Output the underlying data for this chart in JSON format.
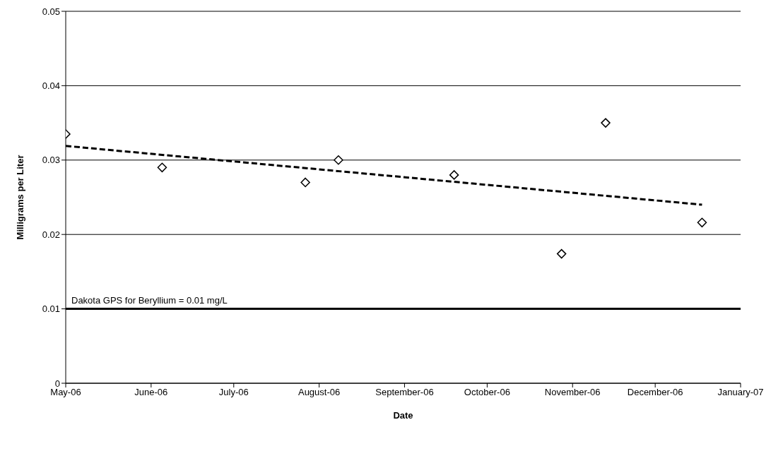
{
  "chart_data": {
    "type": "scatter",
    "xlabel": "Date",
    "ylabel": "Milligrams per Liter",
    "xlim": [
      "2006-05-01",
      "2007-01-01"
    ],
    "xticks": [
      {
        "value": "2006-05-01",
        "label": "May-06"
      },
      {
        "value": "2006-06-01",
        "label": "June-06"
      },
      {
        "value": "2006-07-01",
        "label": "July-06"
      },
      {
        "value": "2006-08-01",
        "label": "August-06"
      },
      {
        "value": "2006-09-01",
        "label": "September-06"
      },
      {
        "value": "2006-10-01",
        "label": "October-06"
      },
      {
        "value": "2006-11-01",
        "label": "November-06"
      },
      {
        "value": "2006-12-01",
        "label": "December-06"
      },
      {
        "value": "2007-01-01",
        "label": "January-07"
      }
    ],
    "ylim": [
      0,
      0.05
    ],
    "yticks": [
      0,
      0.01,
      0.02,
      0.03,
      0.04,
      0.05
    ],
    "grid": "y",
    "marker": "diamond",
    "series": [
      {
        "type": "scatter",
        "color": "#000000",
        "x": [
          "2006-05-01",
          "2006-06-05",
          "2006-07-27",
          "2006-08-08",
          "2006-09-19",
          "2006-10-28",
          "2006-11-13",
          "2006-12-18"
        ],
        "values": [
          0.0335,
          0.029,
          0.027,
          0.03,
          0.028,
          0.0174,
          0.035,
          0.0216
        ]
      },
      {
        "type": "line",
        "color": "#000000",
        "line_style": "dashed",
        "marker": "none",
        "x": [
          "2006-05-01",
          "2006-12-18"
        ],
        "values": [
          0.0319,
          0.024
        ]
      }
    ],
    "ref_lines": [
      {
        "axis": "y",
        "value": 0.01,
        "label": "Dakota GPS for Beryllium = 0.01 mg/L",
        "color": "#000000"
      }
    ]
  }
}
